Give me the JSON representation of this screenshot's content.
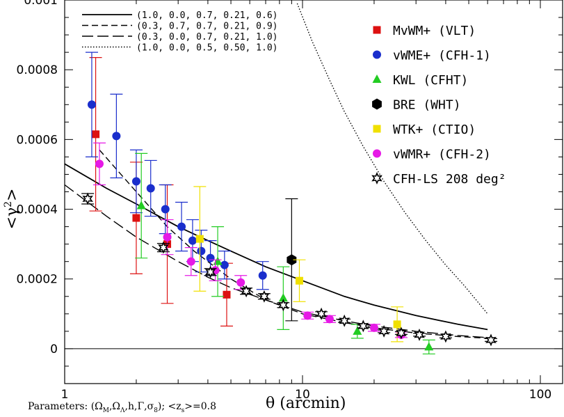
{
  "chart_data": {
    "type": "scatter",
    "title": "",
    "xlabel": "θ (arcmin)",
    "ylabel": "<γ²>",
    "xscale": "log",
    "xlim": [
      1,
      110
    ],
    "ylim": [
      -0.0001,
      0.001
    ],
    "x_tick_labels": [
      {
        "value": 1,
        "label": "1"
      },
      {
        "value": 10,
        "label": "10"
      },
      {
        "value": 100,
        "label": "100"
      }
    ],
    "y_tick_labels": [
      {
        "value": 0,
        "label": "0"
      },
      {
        "value": 0.0002,
        "label": "0.0002"
      },
      {
        "value": 0.0004,
        "label": "0.0004"
      },
      {
        "value": 0.0006,
        "label": "0.0006"
      },
      {
        "value": 0.0008,
        "label": "0.0008"
      },
      {
        "value": 0.001,
        "label": "0.001"
      }
    ],
    "models": [
      {
        "label": "(1.0, 0.0, 0.7, 0.21, 0.6)",
        "style": "solid",
        "points": [
          [
            1,
            0.00053
          ],
          [
            1.5,
            0.00046
          ],
          [
            2,
            0.000415
          ],
          [
            3,
            0.00035
          ],
          [
            4,
            0.00031
          ],
          [
            5,
            0.00028
          ],
          [
            7,
            0.000235
          ],
          [
            10,
            0.000195
          ],
          [
            15,
            0.00015
          ],
          [
            20,
            0.000125
          ],
          [
            30,
            9.5e-05
          ],
          [
            45,
            7e-05
          ],
          [
            60,
            5.5e-05
          ]
        ]
      },
      {
        "label": "(0.3, 0.7, 0.7, 0.21, 0.9)",
        "style": "dashed",
        "points": [
          [
            1.4,
            0.00057
          ],
          [
            2,
            0.00045
          ],
          [
            2.7,
            0.00035
          ],
          [
            3.5,
            0.00028
          ],
          [
            5,
            0.0002
          ],
          [
            7,
            0.00014
          ],
          [
            10,
            0.0001
          ],
          [
            15,
            7.5e-05
          ],
          [
            20,
            6e-05
          ],
          [
            30,
            4.5e-05
          ],
          [
            45,
            3.5e-05
          ],
          [
            60,
            3e-05
          ]
        ]
      },
      {
        "label": "(0.3, 0.0, 0.7, 0.21, 1.0)",
        "style": "longdash",
        "points": [
          [
            1,
            0.00047
          ],
          [
            1.5,
            0.00038
          ],
          [
            2,
            0.00032
          ],
          [
            3,
            0.00025
          ],
          [
            4,
            0.000205
          ],
          [
            5,
            0.000175
          ],
          [
            7,
            0.00014
          ],
          [
            10,
            0.000105
          ],
          [
            15,
            8e-05
          ],
          [
            20,
            6.5e-05
          ],
          [
            30,
            5e-05
          ],
          [
            45,
            3.8e-05
          ],
          [
            60,
            3.2e-05
          ]
        ]
      },
      {
        "label": "(1.0, 0.0, 0.5, 0.50, 1.0)",
        "style": "dotted",
        "points": [
          [
            9.5,
            0.00099
          ],
          [
            11,
            0.00088
          ],
          [
            13,
            0.00077
          ],
          [
            15,
            0.00068
          ],
          [
            18,
            0.00058
          ],
          [
            22,
            0.00048
          ],
          [
            27,
            0.00039
          ],
          [
            33,
            0.00031
          ],
          [
            40,
            0.00024
          ],
          [
            48,
            0.00018
          ],
          [
            60,
            0.0001
          ]
        ]
      }
    ],
    "series": [
      {
        "name": "MvWM+ (VLT)",
        "color": "#dd1111",
        "marker": "square",
        "points": [
          [
            1.35,
            0.000615,
            0.00022
          ],
          [
            2.0,
            0.000375,
            0.00016
          ],
          [
            2.7,
            0.0003,
            0.00017
          ],
          [
            4.8,
            0.000155,
            9e-05
          ]
        ]
      },
      {
        "name": "vWME+ (CFH-1)",
        "color": "#1a2ecc",
        "marker": "circle",
        "points": [
          [
            1.3,
            0.0007,
            0.00015
          ],
          [
            1.65,
            0.00061,
            0.00012
          ],
          [
            2.0,
            0.00048,
            9e-05
          ],
          [
            2.3,
            0.00046,
            8e-05
          ],
          [
            2.65,
            0.0004,
            7e-05
          ],
          [
            3.1,
            0.00035,
            7e-05
          ],
          [
            3.45,
            0.00031,
            6e-05
          ],
          [
            3.75,
            0.00028,
            6e-05
          ],
          [
            4.1,
            0.00026,
            5e-05
          ],
          [
            4.7,
            0.00024,
            4e-05
          ],
          [
            6.8,
            0.00021,
            4e-05
          ]
        ]
      },
      {
        "name": "KWL (CFHT)",
        "color": "#22cc22",
        "marker": "triangle",
        "points": [
          [
            2.1,
            0.00041,
            0.00015
          ],
          [
            4.4,
            0.00025,
            0.0001
          ],
          [
            8.3,
            0.000145,
            9e-05
          ],
          [
            17,
            5e-05,
            2e-05
          ],
          [
            34,
            5e-06,
            2e-05
          ]
        ]
      },
      {
        "name": "BRE (WHT)",
        "color": "#000000",
        "marker": "hexagon",
        "points": [
          [
            9.0,
            0.000255,
            0.000175
          ]
        ]
      },
      {
        "name": "WTK+ (CTIO)",
        "color": "#f0e000",
        "marker": "square",
        "points": [
          [
            3.7,
            0.000315,
            0.00015
          ],
          [
            9.7,
            0.000195,
            6e-05
          ],
          [
            25,
            7e-05,
            5e-05
          ]
        ]
      },
      {
        "name": "vWMR+ (CFH-2)",
        "color": "#e619e6",
        "marker": "circle",
        "points": [
          [
            1.4,
            0.00053,
            6e-05
          ],
          [
            2.7,
            0.00032,
            5e-05
          ],
          [
            3.4,
            0.00025,
            4e-05
          ],
          [
            4.3,
            0.000225,
            3e-05
          ],
          [
            5.5,
            0.00019,
            2e-05
          ],
          [
            10.5,
            9.5e-05,
            1e-05
          ],
          [
            13,
            8.5e-05,
            1e-05
          ],
          [
            20,
            6e-05,
            1e-05
          ],
          [
            26,
            4e-05,
            8e-06
          ]
        ]
      },
      {
        "name": "CFH-LS 208 deg²",
        "color": "#000000",
        "marker": "star",
        "points": [
          [
            1.25,
            0.00043,
            1.5e-05
          ],
          [
            2.6,
            0.00029,
            1.2e-05
          ],
          [
            4.1,
            0.00022,
            1e-05
          ],
          [
            5.8,
            0.000165,
            9e-06
          ],
          [
            6.9,
            0.00015,
            8e-06
          ],
          [
            8.3,
            0.000125,
            7e-06
          ],
          [
            12,
            0.0001,
            6e-06
          ],
          [
            15,
            8e-05,
            5e-06
          ],
          [
            18,
            6.5e-05,
            5e-06
          ],
          [
            22,
            5e-05,
            4e-06
          ],
          [
            26,
            4.5e-05,
            4e-06
          ],
          [
            31,
            4e-05,
            4e-06
          ],
          [
            40,
            3.5e-05,
            4e-06
          ],
          [
            62,
            2.5e-05,
            4e-06
          ]
        ]
      }
    ],
    "legend_position": "top-right",
    "model_legend_position": "top-left",
    "footer": "Parameters: (Ω_M,Ω_Λ,h,Γ,σ_8); <z_s>=0.8"
  }
}
